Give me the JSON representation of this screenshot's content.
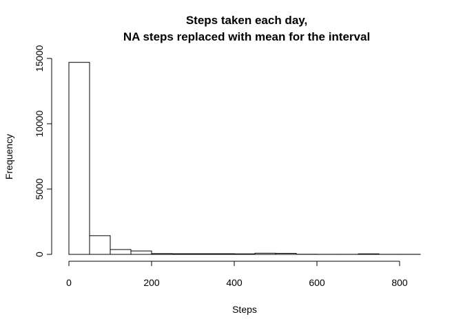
{
  "chart_data": {
    "type": "bar",
    "title_lines": [
      "Steps taken each day,",
      "NA steps replaced with mean for the interval"
    ],
    "xlabel": "Steps",
    "ylabel": "Frequency",
    "xlim": [
      0,
      850
    ],
    "ylim": [
      0,
      15000
    ],
    "x_ticks": [
      0,
      200,
      400,
      600,
      800
    ],
    "y_ticks": [
      0,
      5000,
      10000,
      15000
    ],
    "bins": [
      {
        "start": 0,
        "end": 50,
        "value": 14700
      },
      {
        "start": 50,
        "end": 100,
        "value": 1430
      },
      {
        "start": 100,
        "end": 150,
        "value": 370
      },
      {
        "start": 150,
        "end": 200,
        "value": 260
      },
      {
        "start": 200,
        "end": 250,
        "value": 60
      },
      {
        "start": 250,
        "end": 300,
        "value": 50
      },
      {
        "start": 300,
        "end": 350,
        "value": 50
      },
      {
        "start": 350,
        "end": 400,
        "value": 50
      },
      {
        "start": 400,
        "end": 450,
        "value": 40
      },
      {
        "start": 450,
        "end": 500,
        "value": 90
      },
      {
        "start": 500,
        "end": 550,
        "value": 80
      },
      {
        "start": 550,
        "end": 600,
        "value": 10
      },
      {
        "start": 600,
        "end": 650,
        "value": 5
      },
      {
        "start": 650,
        "end": 700,
        "value": 5
      },
      {
        "start": 700,
        "end": 750,
        "value": 40
      },
      {
        "start": 750,
        "end": 800,
        "value": 5
      },
      {
        "start": 800,
        "end": 850,
        "value": 5
      }
    ]
  }
}
